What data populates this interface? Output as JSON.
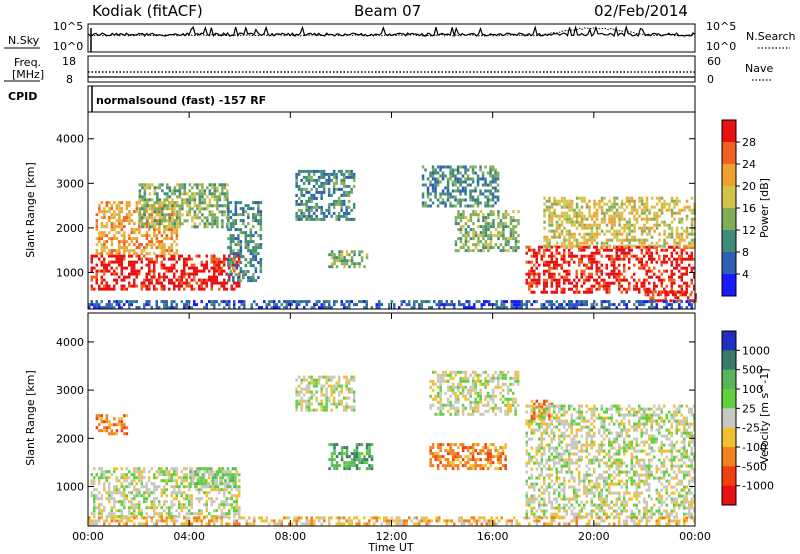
{
  "header": {
    "station": "Kodiak (fitACF)",
    "beam": "Beam 07",
    "date": "02/Feb/2014"
  },
  "sky_panel": {
    "left_label": "N.Sky",
    "right_label": "N.Search",
    "left_ticks": [
      "10^5",
      "10^0"
    ],
    "right_ticks": [
      "10^5",
      "10^0"
    ]
  },
  "freq_panel": {
    "left_label_1": "Freq.",
    "left_label_2": "[MHz]",
    "right_label": "Nave",
    "left_ticks": [
      "18",
      "8"
    ],
    "right_ticks": [
      "60",
      "0"
    ]
  },
  "cpid_panel": {
    "label": "CPID",
    "text": "normalsound (fast) -157 RF"
  },
  "chart_data": [
    {
      "type": "heatmap",
      "title": "",
      "ylabel": "Slant Range [km]",
      "xlabel": "",
      "x_ticks": [
        "00:00",
        "04:00",
        "08:00",
        "12:00",
        "16:00",
        "20:00",
        "00:00"
      ],
      "y_ticks": [
        "1000",
        "2000",
        "3000",
        "4000"
      ],
      "ylim": [
        180,
        4600
      ],
      "xlim_hours": [
        0,
        24
      ],
      "colorbar": {
        "label": "Power [dB]",
        "ticks": [
          "4",
          "8",
          "12",
          "16",
          "20",
          "24",
          "28"
        ],
        "colors": [
          "#1a1aff",
          "#2e5fb0",
          "#3f8a7a",
          "#7fae5a",
          "#d4c24a",
          "#f0a030",
          "#f06020",
          "#e81010"
        ]
      },
      "regions": [
        {
          "t": [
            0.1,
            6.0
          ],
          "r": [
            600,
            1400
          ],
          "level": 7
        },
        {
          "t": [
            0.3,
            3.5
          ],
          "r": [
            1400,
            2600
          ],
          "level": 5
        },
        {
          "t": [
            2.0,
            5.5
          ],
          "r": [
            2000,
            3000
          ],
          "level": 3
        },
        {
          "t": [
            5.5,
            6.8
          ],
          "r": [
            800,
            2600
          ],
          "level": 2
        },
        {
          "t": [
            8.2,
            10.5
          ],
          "r": [
            2200,
            3300
          ],
          "level": 2
        },
        {
          "t": [
            9.5,
            11.0
          ],
          "r": [
            1100,
            1500
          ],
          "level": 3
        },
        {
          "t": [
            13.2,
            16.2
          ],
          "r": [
            2500,
            3400
          ],
          "level": 2
        },
        {
          "t": [
            14.5,
            17.0
          ],
          "r": [
            1500,
            2400
          ],
          "level": 3
        },
        {
          "t": [
            17.3,
            24.0
          ],
          "r": [
            550,
            1600
          ],
          "level": 7
        },
        {
          "t": [
            18.0,
            24.0
          ],
          "r": [
            1600,
            2700
          ],
          "level": 4
        },
        {
          "t": [
            22.0,
            24.0
          ],
          "r": [
            350,
            600
          ],
          "level": 7
        },
        {
          "t": [
            0.0,
            24.0
          ],
          "r": [
            200,
            380
          ],
          "level": 1
        }
      ]
    },
    {
      "type": "heatmap",
      "title": "",
      "ylabel": "Slant Range [km]",
      "xlabel": "Time UT",
      "x_ticks": [
        "00:00",
        "04:00",
        "08:00",
        "12:00",
        "16:00",
        "20:00",
        "00:00"
      ],
      "y_ticks": [
        "1000",
        "2000",
        "3000",
        "4000"
      ],
      "ylim": [
        180,
        4600
      ],
      "xlim_hours": [
        0,
        24
      ],
      "colorbar": {
        "label": "Velocity [m s^-1]",
        "ticks": [
          "1000",
          "500",
          "100",
          "25",
          "-25",
          "-100",
          "-500",
          "-1000"
        ],
        "colors": [
          "#1f2fbf",
          "#3a7a6a",
          "#5ab55a",
          "#60d040",
          "#c8c8c0",
          "#f0c030",
          "#f08020",
          "#f04010",
          "#e81010"
        ]
      },
      "regions": [
        {
          "t": [
            0.1,
            6.0
          ],
          "r": [
            400,
            1400
          ],
          "level": 4
        },
        {
          "t": [
            0.3,
            1.5
          ],
          "r": [
            2100,
            2500
          ],
          "level": 6
        },
        {
          "t": [
            4.0,
            5.8
          ],
          "r": [
            1000,
            1400
          ],
          "level": 3
        },
        {
          "t": [
            8.2,
            10.5
          ],
          "r": [
            2600,
            3300
          ],
          "level": 4
        },
        {
          "t": [
            9.5,
            11.2
          ],
          "r": [
            1400,
            1900
          ],
          "level": 2
        },
        {
          "t": [
            13.5,
            16.5
          ],
          "r": [
            1400,
            1900
          ],
          "level": 6
        },
        {
          "t": [
            13.5,
            17.0
          ],
          "r": [
            2500,
            3400
          ],
          "level": 4
        },
        {
          "t": [
            17.5,
            18.3
          ],
          "r": [
            2400,
            2800
          ],
          "level": 6
        },
        {
          "t": [
            17.3,
            24.0
          ],
          "r": [
            350,
            2700
          ],
          "level": 4
        },
        {
          "t": [
            0.0,
            24.0
          ],
          "r": [
            200,
            380
          ],
          "level": 5
        }
      ]
    }
  ]
}
